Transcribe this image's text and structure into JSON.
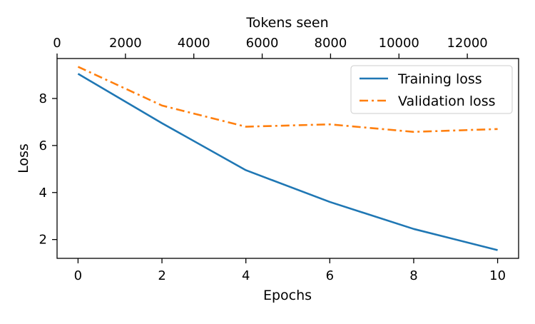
{
  "chart_data": {
    "type": "line",
    "title": "",
    "xlabel": "Epochs",
    "ylabel": "Loss",
    "secondary_xlabel": "Tokens seen",
    "xlim": [
      -0.5,
      10.5
    ],
    "ylim": [
      1.2,
      9.7
    ],
    "secondary_xlim": [
      0,
      13500
    ],
    "x_ticks": [
      0,
      2,
      4,
      6,
      8,
      10
    ],
    "x_tick_labels": [
      "0",
      "2",
      "4",
      "6",
      "8",
      "10"
    ],
    "y_ticks": [
      2,
      4,
      6,
      8
    ],
    "y_tick_labels": [
      "2",
      "4",
      "6",
      "8"
    ],
    "secondary_x_ticks": [
      0,
      2000,
      4000,
      6000,
      8000,
      10000,
      12000
    ],
    "secondary_x_tick_labels": [
      "0",
      "2000",
      "4000",
      "6000",
      "8000",
      "10000",
      "12000"
    ],
    "grid": false,
    "legend_position": "top-right",
    "series": [
      {
        "name": "Training loss",
        "color": "#1f77b4",
        "line_style": "solid",
        "x": [
          0,
          2,
          4,
          6,
          8,
          10
        ],
        "values": [
          9.05,
          6.95,
          4.95,
          3.6,
          2.45,
          1.55
        ]
      },
      {
        "name": "Validation loss",
        "color": "#ff7f0e",
        "line_style": "dash-dot",
        "x": [
          0,
          2,
          4,
          6,
          8,
          10
        ],
        "values": [
          9.35,
          7.7,
          6.8,
          6.9,
          6.58,
          6.7
        ]
      }
    ]
  }
}
